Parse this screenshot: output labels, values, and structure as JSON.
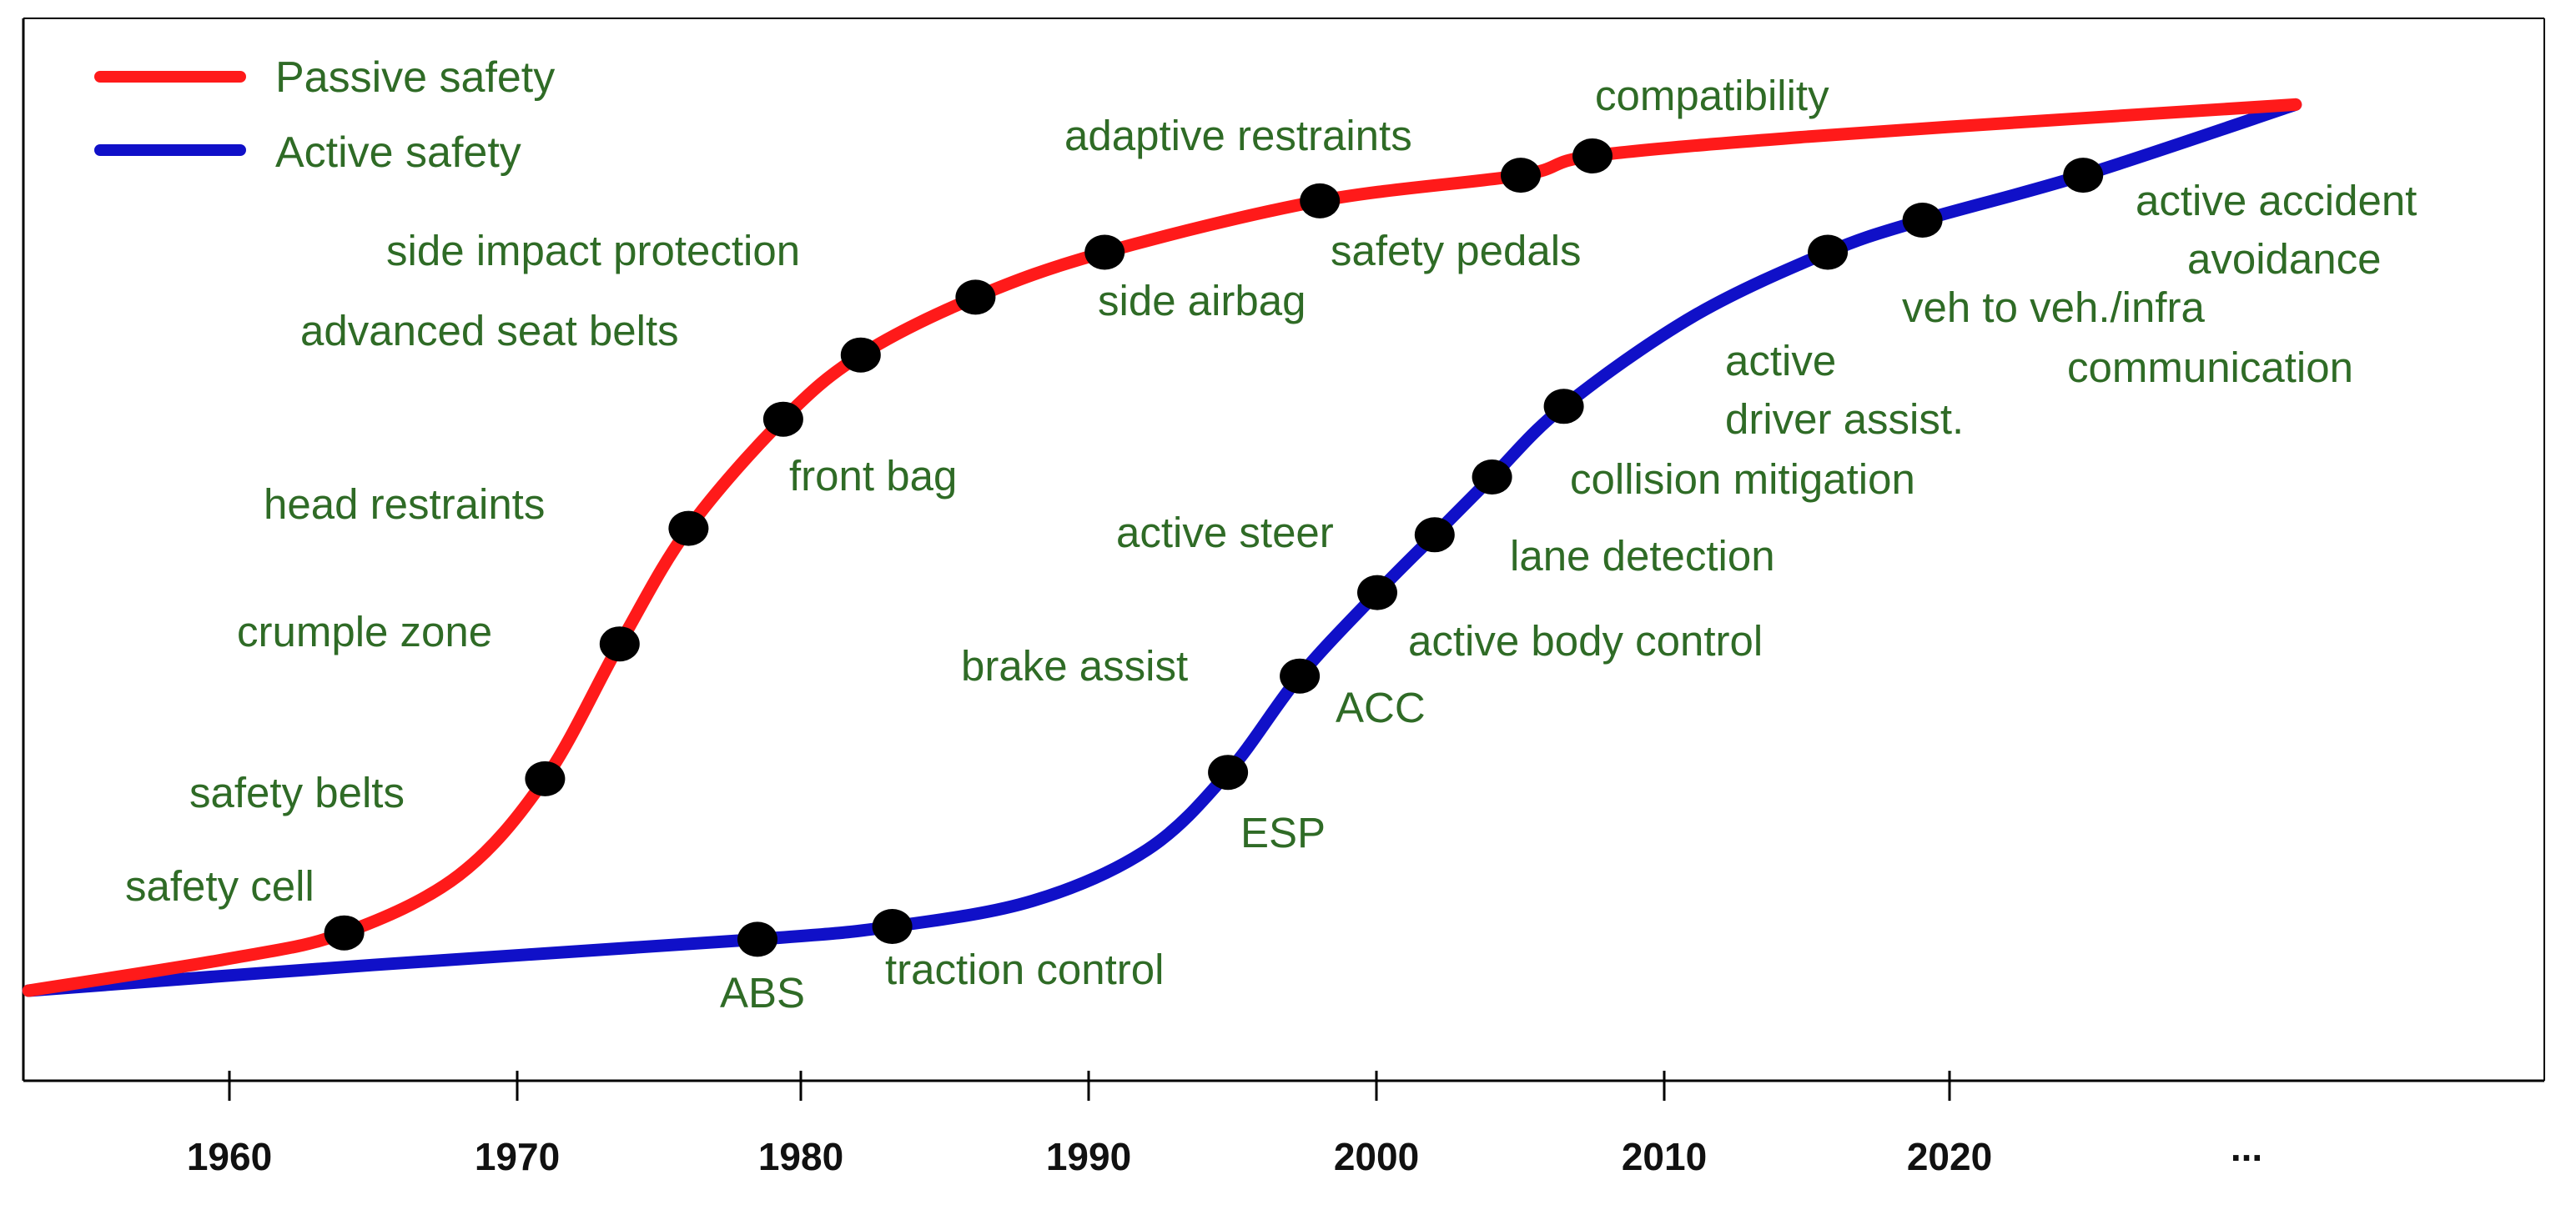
{
  "chart_data": {
    "type": "line",
    "title": "",
    "xlabel": "",
    "ylabel": "",
    "x_ticks": [
      "1960",
      "1970",
      "1980",
      "1990",
      "2000",
      "2010",
      "2020",
      "..."
    ],
    "series": [
      {
        "name": "Passive safety",
        "color": "#ff1a1a",
        "curve": [
          {
            "x": 1953,
            "y": 0.0
          },
          {
            "x": 1960,
            "y": 0.05
          },
          {
            "x": 1964,
            "y": 0.09
          },
          {
            "x": 1968,
            "y": 0.18
          },
          {
            "x": 1971,
            "y": 0.33
          },
          {
            "x": 1973.6,
            "y": 0.54
          },
          {
            "x": 1976,
            "y": 0.72
          },
          {
            "x": 1979.3,
            "y": 0.89
          },
          {
            "x": 1982,
            "y": 0.99
          },
          {
            "x": 1986,
            "y": 1.08
          },
          {
            "x": 1990.5,
            "y": 1.15
          },
          {
            "x": 1998,
            "y": 1.23
          },
          {
            "x": 2005,
            "y": 1.27
          },
          {
            "x": 2007.5,
            "y": 1.3
          },
          {
            "x": 2015,
            "y": 1.33
          },
          {
            "x": 2025,
            "y": 1.36
          },
          {
            "x": 2032,
            "y": 1.38
          }
        ],
        "events": [
          {
            "x": 1964,
            "label": "safety cell"
          },
          {
            "x": 1971,
            "label": "safety belts"
          },
          {
            "x": 1973.6,
            "label": "crumple zone"
          },
          {
            "x": 1976,
            "label": "head restraints"
          },
          {
            "x": 1979.3,
            "label": "front bag"
          },
          {
            "x": 1982,
            "label": "advanced seat belts"
          },
          {
            "x": 1986,
            "label": "side impact protection"
          },
          {
            "x": 1990.5,
            "label": "side airbag"
          },
          {
            "x": 1998,
            "label": "safety pedals"
          },
          {
            "x": 2005,
            "label": "adaptive restraints"
          },
          {
            "x": 2007.5,
            "label": "compatibility"
          }
        ]
      },
      {
        "name": "Active safety",
        "color": "#1010c8",
        "curve": [
          {
            "x": 1953,
            "y": 0.0
          },
          {
            "x": 1965,
            "y": 0.04
          },
          {
            "x": 1978.4,
            "y": 0.08
          },
          {
            "x": 1983.1,
            "y": 0.1
          },
          {
            "x": 1988,
            "y": 0.14
          },
          {
            "x": 1992,
            "y": 0.22
          },
          {
            "x": 1994.8,
            "y": 0.34
          },
          {
            "x": 1997.3,
            "y": 0.49
          },
          {
            "x": 2000,
            "y": 0.62
          },
          {
            "x": 2002,
            "y": 0.71
          },
          {
            "x": 2004,
            "y": 0.8
          },
          {
            "x": 2006.5,
            "y": 0.91
          },
          {
            "x": 2011,
            "y": 1.05
          },
          {
            "x": 2015.7,
            "y": 1.15
          },
          {
            "x": 2019,
            "y": 1.2
          },
          {
            "x": 2024.6,
            "y": 1.27
          },
          {
            "x": 2032,
            "y": 1.38
          }
        ],
        "events": [
          {
            "x": 1978.4,
            "label": "ABS"
          },
          {
            "x": 1983.1,
            "label": "traction control"
          },
          {
            "x": 1994.8,
            "label": "ESP"
          },
          {
            "x": 1997.3,
            "label": "ACC"
          },
          {
            "x": 2000,
            "label": "active body control"
          },
          {
            "x": 2002,
            "label": "active steer"
          },
          {
            "x": 2004,
            "label": "lane detection"
          },
          {
            "x": 2006.5,
            "label": "collision mitigation"
          },
          {
            "x": 2015.7,
            "label": "active driver assist."
          },
          {
            "x": 2019,
            "label": "veh to veh./infra communication"
          },
          {
            "x": 2024.6,
            "label": "active accident avoidance"
          }
        ]
      }
    ],
    "extra_labels": [
      "brake assist"
    ],
    "legend": [
      {
        "label": "Passive safety",
        "color": "#ff1a1a"
      },
      {
        "label": "Active safety",
        "color": "#1010c8"
      }
    ],
    "legend_position": "top-left",
    "grid": false
  },
  "label_text": {
    "safety_cell": "safety cell",
    "safety_belts": "safety belts",
    "crumple_zone": "crumple zone",
    "head_restraints": "head restraints",
    "front_bag": "front bag",
    "advanced_seat_belts": "advanced seat belts",
    "side_impact_protection": "side impact protection",
    "side_airbag": "side airbag",
    "adaptive_restraints": "adaptive restraints",
    "safety_pedals": "safety pedals",
    "compatibility": "compatibility",
    "abs": "ABS",
    "traction_control": "traction control",
    "esp": "ESP",
    "acc": "ACC",
    "brake_assist": "brake assist",
    "active_body_control": "active body control",
    "active_steer": "active steer",
    "lane_detection": "lane detection",
    "collision_mitigation": "collision mitigation",
    "active_driver_assist_1": "active",
    "active_driver_assist_2": "driver assist.",
    "veh_comm_1": "veh to veh./infra",
    "veh_comm_2": "communication",
    "active_accident_1": "active accident",
    "active_accident_2": "avoidance"
  }
}
